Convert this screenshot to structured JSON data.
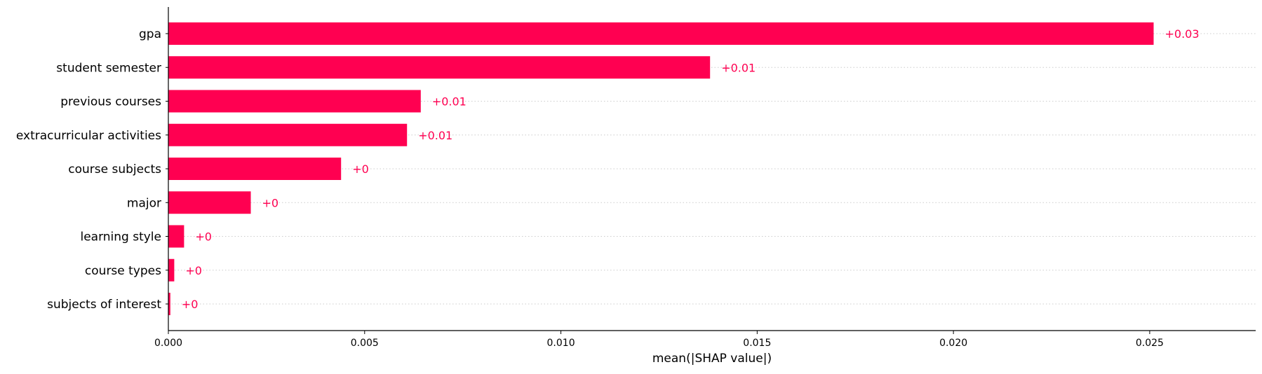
{
  "chart_data": {
    "type": "bar",
    "orientation": "horizontal",
    "categories": [
      "gpa",
      "student semester",
      "previous courses",
      "extracurricular activities",
      "course subjects",
      "major",
      "learning style",
      "course types",
      "subjects of interest"
    ],
    "values": [
      0.0251,
      0.0138,
      0.00643,
      0.00608,
      0.0044,
      0.0021,
      0.0004,
      0.00015,
      5e-05
    ],
    "value_labels": [
      "+0.03",
      "+0.01",
      "+0.01",
      "+0.01",
      "+0",
      "+0",
      "+0",
      "+0",
      "+0"
    ],
    "xlabel": "mean(|SHAP value|)",
    "xlim": [
      0,
      0.0277
    ],
    "xticks": [
      0.0,
      0.005,
      0.01,
      0.015,
      0.02,
      0.025
    ],
    "xtick_labels": [
      "0.000",
      "0.005",
      "0.010",
      "0.015",
      "0.020",
      "0.025"
    ],
    "grid": "horizontal dotted lines per category",
    "colors": {
      "bar": "#ff0051",
      "value_label": "#ff0051",
      "grid": "#cccccc",
      "axis": "#000000"
    }
  }
}
